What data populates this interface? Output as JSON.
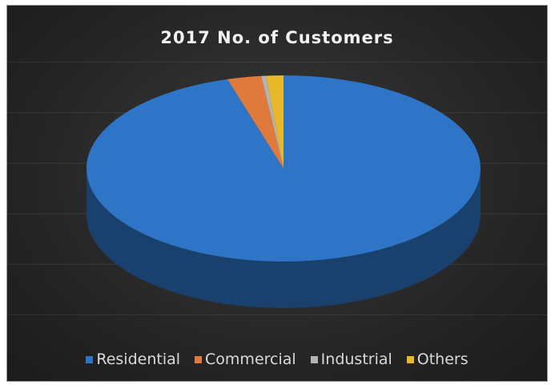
{
  "chart_data": {
    "type": "pie",
    "style": "3d",
    "title": "2017 No. of Customers",
    "legend_position": "bottom",
    "slices": [
      {
        "name": "Residential",
        "value": 95.4,
        "color": "#2f75c7"
      },
      {
        "name": "Commercial",
        "value": 2.8,
        "color": "#e07a3c"
      },
      {
        "name": "Industrial",
        "value": 0.4,
        "color": "#b3b3b3"
      },
      {
        "name": "Others",
        "value": 1.4,
        "color": "#e8b82a"
      }
    ]
  }
}
